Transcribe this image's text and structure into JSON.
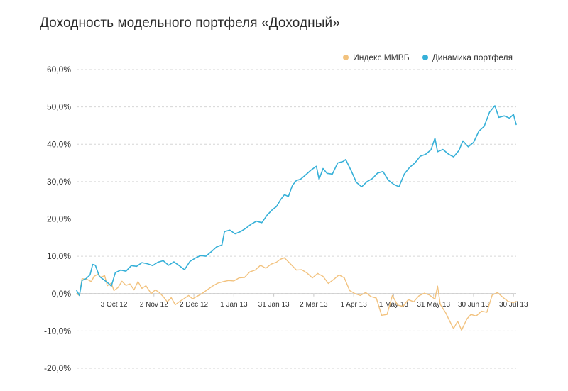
{
  "chart_data": {
    "type": "line",
    "title": "Доходность модельного портфеля «Доходный»",
    "xlabel": "",
    "ylabel": "",
    "ylim": [
      -20,
      60
    ],
    "yticks": [
      60,
      50,
      40,
      30,
      20,
      10,
      0,
      -10,
      -20
    ],
    "ytick_labels": [
      "60,0%",
      "50,0%",
      "40,0%",
      "30,0%",
      "20,0%",
      "10,0%",
      "0,0%",
      "-10,0%",
      "-20,0%"
    ],
    "xticks": [
      "3 Oct 12",
      "2 Nov 12",
      "2 Dec 12",
      "1 Jan 13",
      "31 Jan 13",
      "2 Mar 13",
      "1 Apr 13",
      "1 May 13",
      "31 May 13",
      "30 Jun 13",
      "30 Jul 13"
    ],
    "x_start": "2012-09-05",
    "x_end": "2013-08-01",
    "grid": true,
    "legend_position": "top-right",
    "series": [
      {
        "name": "Индекс ММВБ",
        "color": "#f2c27e",
        "points": [
          [
            "2012-09-05",
            0.0
          ],
          [
            "2012-09-07",
            -0.5
          ],
          [
            "2012-09-09",
            4.0
          ],
          [
            "2012-09-13",
            3.8
          ],
          [
            "2012-09-16",
            3.2
          ],
          [
            "2012-09-18",
            4.6
          ],
          [
            "2012-09-21",
            5.2
          ],
          [
            "2012-09-23",
            4.4
          ],
          [
            "2012-09-26",
            4.8
          ],
          [
            "2012-09-28",
            2.1
          ],
          [
            "2012-10-01",
            2.8
          ],
          [
            "2012-10-03",
            0.8
          ],
          [
            "2012-10-06",
            1.6
          ],
          [
            "2012-10-09",
            3.3
          ],
          [
            "2012-10-12",
            2.2
          ],
          [
            "2012-10-15",
            2.6
          ],
          [
            "2012-10-18",
            1.0
          ],
          [
            "2012-10-21",
            3.2
          ],
          [
            "2012-10-24",
            1.4
          ],
          [
            "2012-10-27",
            2.1
          ],
          [
            "2012-10-31",
            0.0
          ],
          [
            "2012-11-03",
            1.0
          ],
          [
            "2012-11-06",
            0.3
          ],
          [
            "2012-11-09",
            -0.8
          ],
          [
            "2012-11-12",
            -2.2
          ],
          [
            "2012-11-15",
            -1.1
          ],
          [
            "2012-11-18",
            -3.0
          ],
          [
            "2012-11-21",
            -2.2
          ],
          [
            "2012-11-24",
            -1.5
          ],
          [
            "2012-11-28",
            -0.5
          ],
          [
            "2012-12-01",
            -1.4
          ],
          [
            "2012-12-04",
            -0.8
          ],
          [
            "2012-12-08",
            0.0
          ],
          [
            "2012-12-12",
            1.0
          ],
          [
            "2012-12-16",
            2.0
          ],
          [
            "2012-12-20",
            2.8
          ],
          [
            "2012-12-24",
            3.2
          ],
          [
            "2012-12-28",
            3.5
          ],
          [
            "2013-01-01",
            3.4
          ],
          [
            "2013-01-05",
            4.2
          ],
          [
            "2013-01-09",
            4.3
          ],
          [
            "2013-01-13",
            5.8
          ],
          [
            "2013-01-17",
            6.3
          ],
          [
            "2013-01-21",
            7.6
          ],
          [
            "2013-01-25",
            6.8
          ],
          [
            "2013-01-29",
            7.9
          ],
          [
            "2013-02-02",
            8.4
          ],
          [
            "2013-02-05",
            9.2
          ],
          [
            "2013-02-08",
            9.6
          ],
          [
            "2013-02-11",
            8.5
          ],
          [
            "2013-02-14",
            7.4
          ],
          [
            "2013-02-17",
            6.3
          ],
          [
            "2013-02-21",
            6.4
          ],
          [
            "2013-02-25",
            5.5
          ],
          [
            "2013-03-01",
            4.2
          ],
          [
            "2013-03-05",
            5.4
          ],
          [
            "2013-03-09",
            4.6
          ],
          [
            "2013-03-13",
            2.7
          ],
          [
            "2013-03-17",
            3.8
          ],
          [
            "2013-03-21",
            5.0
          ],
          [
            "2013-03-25",
            4.2
          ],
          [
            "2013-03-29",
            0.8
          ],
          [
            "2013-04-02",
            0.0
          ],
          [
            "2013-04-06",
            -0.5
          ],
          [
            "2013-04-10",
            0.3
          ],
          [
            "2013-04-14",
            -0.8
          ],
          [
            "2013-04-18",
            -1.2
          ],
          [
            "2013-04-22",
            -5.8
          ],
          [
            "2013-04-26",
            -5.6
          ],
          [
            "2013-04-30",
            -0.5
          ],
          [
            "2013-05-04",
            -3.1
          ],
          [
            "2013-05-08",
            -3.4
          ],
          [
            "2013-05-12",
            -1.6
          ],
          [
            "2013-05-16",
            -2.2
          ],
          [
            "2013-05-20",
            -0.6
          ],
          [
            "2013-05-24",
            0.1
          ],
          [
            "2013-05-28",
            -0.4
          ],
          [
            "2013-06-01",
            -1.5
          ],
          [
            "2013-06-03",
            2.0
          ],
          [
            "2013-06-05",
            -2.9
          ],
          [
            "2013-06-09",
            -5.1
          ],
          [
            "2013-06-12",
            -7.3
          ],
          [
            "2013-06-15",
            -9.4
          ],
          [
            "2013-06-18",
            -7.4
          ],
          [
            "2013-06-21",
            -9.8
          ],
          [
            "2013-06-25",
            -6.8
          ],
          [
            "2013-06-28",
            -5.6
          ],
          [
            "2013-07-02",
            -6.0
          ],
          [
            "2013-07-06",
            -4.7
          ],
          [
            "2013-07-10",
            -5.0
          ],
          [
            "2013-07-14",
            -0.4
          ],
          [
            "2013-07-18",
            0.3
          ],
          [
            "2013-07-22",
            -1.0
          ],
          [
            "2013-07-26",
            -2.1
          ],
          [
            "2013-07-30",
            -2.4
          ],
          [
            "2013-08-01",
            -2.1
          ]
        ]
      },
      {
        "name": "Динамика портфеля",
        "color": "#36b0d8",
        "points": [
          [
            "2012-09-05",
            0.8
          ],
          [
            "2012-09-07",
            -0.5
          ],
          [
            "2012-09-09",
            3.5
          ],
          [
            "2012-09-12",
            4.0
          ],
          [
            "2012-09-15",
            5.0
          ],
          [
            "2012-09-17",
            7.8
          ],
          [
            "2012-09-19",
            7.6
          ],
          [
            "2012-09-22",
            4.6
          ],
          [
            "2012-09-25",
            3.8
          ],
          [
            "2012-09-28",
            3.0
          ],
          [
            "2012-10-01",
            2.0
          ],
          [
            "2012-10-04",
            5.6
          ],
          [
            "2012-10-08",
            6.3
          ],
          [
            "2012-10-12",
            6.0
          ],
          [
            "2012-10-16",
            7.5
          ],
          [
            "2012-10-20",
            7.3
          ],
          [
            "2012-10-24",
            8.3
          ],
          [
            "2012-10-28",
            8.0
          ],
          [
            "2012-11-01",
            7.5
          ],
          [
            "2012-11-05",
            8.4
          ],
          [
            "2012-11-09",
            8.8
          ],
          [
            "2012-11-13",
            7.6
          ],
          [
            "2012-11-17",
            8.5
          ],
          [
            "2012-11-21",
            7.5
          ],
          [
            "2012-11-25",
            6.4
          ],
          [
            "2012-11-29",
            8.6
          ],
          [
            "2012-12-03",
            9.5
          ],
          [
            "2012-12-07",
            10.2
          ],
          [
            "2012-12-11",
            10.0
          ],
          [
            "2012-12-15",
            11.2
          ],
          [
            "2012-12-19",
            12.5
          ],
          [
            "2012-12-23",
            13.0
          ],
          [
            "2012-12-25",
            16.6
          ],
          [
            "2012-12-29",
            17.0
          ],
          [
            "2013-01-02",
            16.0
          ],
          [
            "2013-01-06",
            16.6
          ],
          [
            "2013-01-10",
            17.5
          ],
          [
            "2013-01-14",
            18.6
          ],
          [
            "2013-01-18",
            19.4
          ],
          [
            "2013-01-22",
            19.0
          ],
          [
            "2013-01-26",
            21.0
          ],
          [
            "2013-01-30",
            22.5
          ],
          [
            "2013-02-02",
            23.3
          ],
          [
            "2013-02-05",
            25.1
          ],
          [
            "2013-02-08",
            26.5
          ],
          [
            "2013-02-11",
            26.0
          ],
          [
            "2013-02-14",
            29.0
          ],
          [
            "2013-02-17",
            30.3
          ],
          [
            "2013-02-20",
            30.6
          ],
          [
            "2013-02-24",
            31.8
          ],
          [
            "2013-02-28",
            33.1
          ],
          [
            "2013-03-04",
            34.1
          ],
          [
            "2013-03-06",
            30.6
          ],
          [
            "2013-03-09",
            33.5
          ],
          [
            "2013-03-12",
            32.2
          ],
          [
            "2013-03-16",
            32.0
          ],
          [
            "2013-03-20",
            35.0
          ],
          [
            "2013-03-24",
            35.4
          ],
          [
            "2013-03-26",
            35.9
          ],
          [
            "2013-03-30",
            33.0
          ],
          [
            "2013-04-03",
            29.8
          ],
          [
            "2013-04-07",
            28.6
          ],
          [
            "2013-04-11",
            30.0
          ],
          [
            "2013-04-15",
            30.8
          ],
          [
            "2013-04-19",
            32.3
          ],
          [
            "2013-04-23",
            32.7
          ],
          [
            "2013-04-27",
            30.4
          ],
          [
            "2013-05-01",
            29.3
          ],
          [
            "2013-05-05",
            28.6
          ],
          [
            "2013-05-09",
            32.0
          ],
          [
            "2013-05-13",
            33.8
          ],
          [
            "2013-05-17",
            35.0
          ],
          [
            "2013-05-21",
            36.8
          ],
          [
            "2013-05-25",
            37.3
          ],
          [
            "2013-05-29",
            38.5
          ],
          [
            "2013-06-01",
            41.6
          ],
          [
            "2013-06-03",
            38.0
          ],
          [
            "2013-06-07",
            38.6
          ],
          [
            "2013-06-11",
            37.4
          ],
          [
            "2013-06-15",
            36.6
          ],
          [
            "2013-06-19",
            38.3
          ],
          [
            "2013-06-22",
            40.9
          ],
          [
            "2013-06-26",
            39.3
          ],
          [
            "2013-06-30",
            40.5
          ],
          [
            "2013-07-04",
            43.5
          ],
          [
            "2013-07-08",
            44.8
          ],
          [
            "2013-07-12",
            48.6
          ],
          [
            "2013-07-16",
            50.3
          ],
          [
            "2013-07-19",
            47.2
          ],
          [
            "2013-07-23",
            47.6
          ],
          [
            "2013-07-27",
            47.0
          ],
          [
            "2013-07-30",
            48.0
          ],
          [
            "2013-08-01",
            45.3
          ]
        ]
      }
    ]
  }
}
